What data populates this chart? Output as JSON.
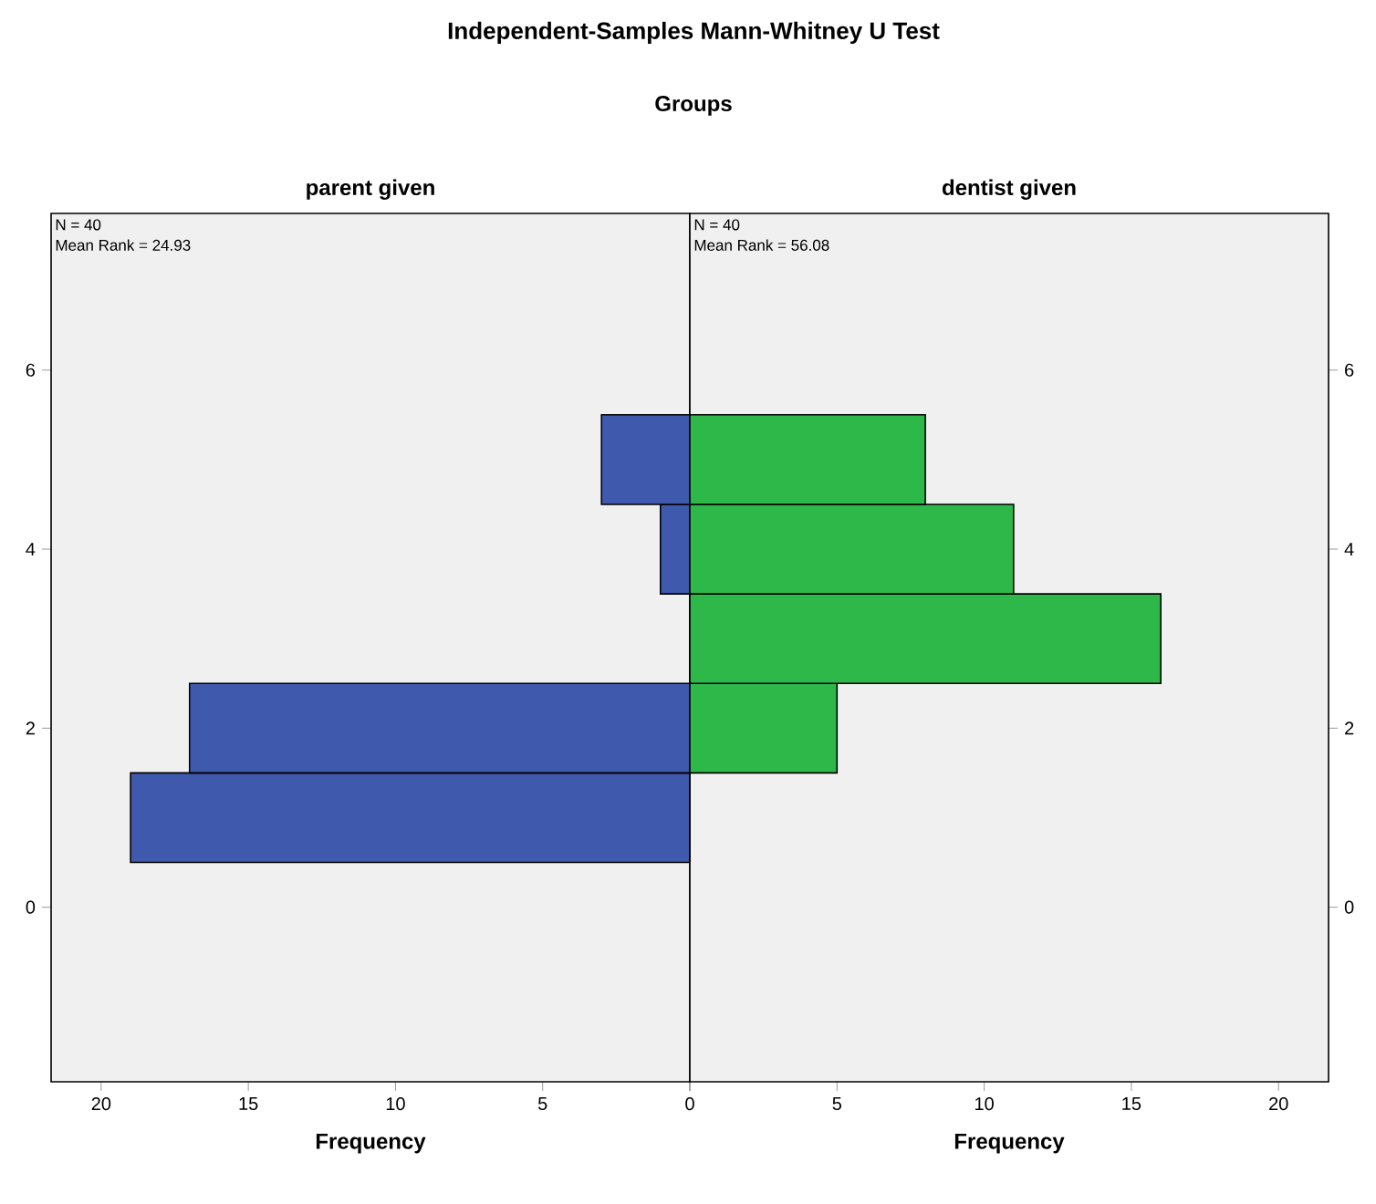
{
  "chart_data": [
    {
      "type": "other",
      "title": "Independent-Samples Mann-Whitney U Test",
      "subtitle": "Groups"
    },
    {
      "type": "histogram",
      "orientation": "horizontal",
      "title": "parent given",
      "xlabel": "Frequency",
      "bins": [
        0.5,
        1.5,
        2.5,
        3.5,
        4.5,
        5.5
      ],
      "values": [
        19,
        17,
        0,
        1,
        3
      ],
      "color": "#3f59ad",
      "xlim": [
        21.7,
        0
      ],
      "xticks": [
        20,
        15,
        10,
        5,
        {
          "value": 0,
          "label": null
        }
      ],
      "ylim": [
        -1.95,
        7.75
      ],
      "yticks": [
        0,
        2,
        4,
        6
      ],
      "annotations": [
        "N = 40",
        "Mean Rank = 24.93"
      ]
    },
    {
      "type": "histogram",
      "orientation": "horizontal",
      "title": "dentist given",
      "xlabel": "Frequency",
      "bins": [
        0.5,
        1.5,
        2.5,
        3.5,
        4.5,
        5.5
      ],
      "values": [
        0,
        5,
        16,
        11,
        8
      ],
      "color": "#2fb84a",
      "xlim": [
        0,
        21.7
      ],
      "xticks": [
        0,
        5,
        10,
        15,
        20
      ],
      "ylim": [
        -1.95,
        7.75
      ],
      "yticks": [
        0,
        2,
        4,
        6
      ],
      "annotations": [
        "N = 40",
        "Mean Rank = 56.08"
      ]
    }
  ]
}
